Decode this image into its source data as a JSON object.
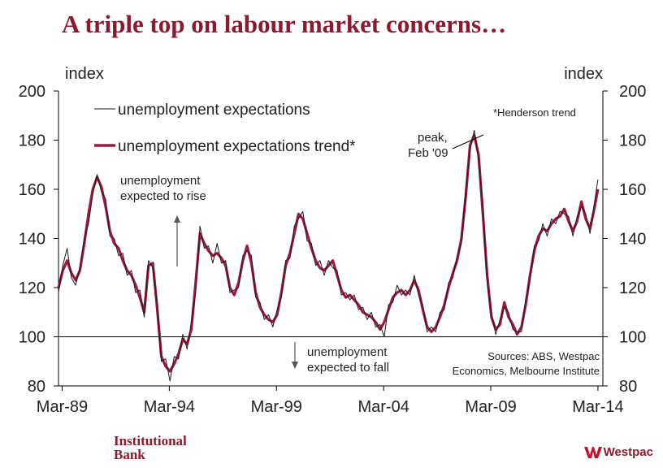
{
  "title": "A triple top on labour market concerns…",
  "footer": {
    "left_line1": "Institutional",
    "left_line2": "Bank",
    "brand": "Westpac"
  },
  "colors": {
    "title": "#8b1a2f",
    "trend": "#9e1a3d",
    "raw": "#1a1a1a",
    "axis": "#000000"
  },
  "chart_data": {
    "type": "line",
    "ylim": [
      80,
      200
    ],
    "yticks": [
      80,
      100,
      120,
      140,
      160,
      180,
      200
    ],
    "ylabel_left": "index",
    "ylabel_right": "index",
    "reference_line": 100,
    "xlim": [
      1989.0,
      2014.4
    ],
    "xticks": [
      {
        "value": 1989.17,
        "label": "Mar-89"
      },
      {
        "value": 1994.17,
        "label": "Mar-94"
      },
      {
        "value": 1999.17,
        "label": "Mar-99"
      },
      {
        "value": 2004.17,
        "label": "Mar-04"
      },
      {
        "value": 2009.17,
        "label": "Mar-09"
      },
      {
        "value": 2014.17,
        "label": "Mar-14"
      }
    ],
    "legend": {
      "raw": "unemployment expectations",
      "trend": "unemployment expectations trend*"
    },
    "annotations": {
      "henderson": "*Henderson trend",
      "peak_line1": "peak,",
      "peak_line2": "Feb '09",
      "rise_line1": "unemployment",
      "rise_line2": "expected to rise",
      "fall_line1": "unemployment",
      "fall_line2": "expected to fall",
      "sources_line1": "Sources: ABS, Westpac",
      "sources_line2": "Economics, Melbourne Institute"
    },
    "series": [
      {
        "name": "unemployment expectations trend*",
        "x": [
          1989.0,
          1989.2,
          1989.4,
          1989.6,
          1989.8,
          1990.0,
          1990.2,
          1990.4,
          1990.6,
          1990.8,
          1991.0,
          1991.2,
          1991.4,
          1991.6,
          1991.8,
          1992.0,
          1992.2,
          1992.4,
          1992.6,
          1992.8,
          1993.0,
          1993.2,
          1993.4,
          1993.6,
          1993.8,
          1994.0,
          1994.2,
          1994.4,
          1994.6,
          1994.8,
          1995.0,
          1995.2,
          1995.4,
          1995.6,
          1995.8,
          1996.0,
          1996.2,
          1996.4,
          1996.6,
          1996.8,
          1997.0,
          1997.2,
          1997.4,
          1997.6,
          1997.8,
          1998.0,
          1998.2,
          1998.4,
          1998.6,
          1998.8,
          1999.0,
          1999.2,
          1999.4,
          1999.6,
          1999.8,
          2000.0,
          2000.2,
          2000.4,
          2000.6,
          2000.8,
          2001.0,
          2001.2,
          2001.4,
          2001.6,
          2001.8,
          2002.0,
          2002.2,
          2002.4,
          2002.6,
          2002.8,
          2003.0,
          2003.2,
          2003.4,
          2003.6,
          2003.8,
          2004.0,
          2004.2,
          2004.4,
          2004.6,
          2004.8,
          2005.0,
          2005.2,
          2005.4,
          2005.6,
          2005.8,
          2006.0,
          2006.2,
          2006.4,
          2006.6,
          2006.8,
          2007.0,
          2007.2,
          2007.4,
          2007.6,
          2007.8,
          2008.0,
          2008.2,
          2008.4,
          2008.6,
          2008.8,
          2009.0,
          2009.2,
          2009.4,
          2009.6,
          2009.8,
          2010.0,
          2010.2,
          2010.4,
          2010.6,
          2010.8,
          2011.0,
          2011.2,
          2011.4,
          2011.6,
          2011.8,
          2012.0,
          2012.2,
          2012.4,
          2012.6,
          2012.8,
          2013.0,
          2013.2,
          2013.4,
          2013.6,
          2013.8,
          2014.0,
          2014.17
        ],
        "values": [
          120,
          127,
          131,
          126,
          123,
          127,
          138,
          150,
          160,
          165,
          161,
          153,
          143,
          138,
          136,
          131,
          127,
          125,
          121,
          116,
          110,
          129,
          130,
          112,
          92,
          88,
          86,
          89,
          93,
          99,
          97,
          103,
          122,
          142,
          138,
          135,
          133,
          134,
          132,
          129,
          120,
          117,
          122,
          131,
          137,
          130,
          118,
          112,
          109,
          107,
          106,
          109,
          118,
          129,
          134,
          142,
          150,
          148,
          142,
          136,
          131,
          128,
          127,
          129,
          131,
          125,
          119,
          116,
          117,
          115,
          113,
          110,
          109,
          108,
          106,
          103,
          106,
          111,
          116,
          118,
          119,
          117,
          119,
          123,
          119,
          111,
          104,
          102,
          104,
          108,
          113,
          120,
          126,
          131,
          140,
          157,
          178,
          182,
          174,
          150,
          125,
          108,
          103,
          105,
          114,
          108,
          105,
          101,
          104,
          113,
          125,
          135,
          141,
          144,
          143,
          146,
          148,
          149,
          152,
          147,
          143,
          147,
          155,
          148,
          144,
          152,
          160
        ]
      },
      {
        "name": "unemployment expectations",
        "x": [
          1989.0,
          1989.2,
          1989.4,
          1989.6,
          1989.8,
          1990.0,
          1990.2,
          1990.4,
          1990.6,
          1990.8,
          1991.0,
          1991.2,
          1991.4,
          1991.6,
          1991.8,
          1992.0,
          1992.2,
          1992.4,
          1992.6,
          1992.8,
          1993.0,
          1993.2,
          1993.4,
          1993.6,
          1993.8,
          1994.0,
          1994.2,
          1994.4,
          1994.6,
          1994.8,
          1995.0,
          1995.2,
          1995.4,
          1995.6,
          1995.8,
          1996.0,
          1996.2,
          1996.4,
          1996.6,
          1996.8,
          1997.0,
          1997.2,
          1997.4,
          1997.6,
          1997.8,
          1998.0,
          1998.2,
          1998.4,
          1998.6,
          1998.8,
          1999.0,
          1999.2,
          1999.4,
          1999.6,
          1999.8,
          2000.0,
          2000.2,
          2000.4,
          2000.6,
          2000.8,
          2001.0,
          2001.2,
          2001.4,
          2001.6,
          2001.8,
          2002.0,
          2002.2,
          2002.4,
          2002.6,
          2002.8,
          2003.0,
          2003.2,
          2003.4,
          2003.6,
          2003.8,
          2004.0,
          2004.2,
          2004.4,
          2004.6,
          2004.8,
          2005.0,
          2005.2,
          2005.4,
          2005.6,
          2005.8,
          2006.0,
          2006.2,
          2006.4,
          2006.6,
          2006.8,
          2007.0,
          2007.2,
          2007.4,
          2007.6,
          2007.8,
          2008.0,
          2008.2,
          2008.4,
          2008.6,
          2008.8,
          2009.0,
          2009.2,
          2009.4,
          2009.6,
          2009.8,
          2010.0,
          2010.2,
          2010.4,
          2010.6,
          2010.8,
          2011.0,
          2011.2,
          2011.4,
          2011.6,
          2011.8,
          2012.0,
          2012.2,
          2012.4,
          2012.6,
          2012.8,
          2013.0,
          2013.2,
          2013.4,
          2013.6,
          2013.8,
          2014.0,
          2014.17
        ],
        "values": [
          118,
          129,
          136,
          124,
          121,
          128,
          140,
          146,
          158,
          166,
          159,
          156,
          141,
          140,
          133,
          134,
          125,
          127,
          118,
          119,
          108,
          131,
          128,
          114,
          90,
          91,
          82,
          92,
          91,
          101,
          95,
          106,
          118,
          145,
          136,
          137,
          130,
          138,
          130,
          131,
          118,
          119,
          120,
          133,
          135,
          133,
          116,
          114,
          107,
          109,
          104,
          111,
          116,
          131,
          132,
          145,
          148,
          151,
          139,
          138,
          129,
          131,
          125,
          131,
          128,
          127,
          117,
          118,
          115,
          117,
          111,
          112,
          107,
          110,
          104,
          105,
          100,
          113,
          114,
          121,
          117,
          119,
          117,
          125,
          117,
          113,
          102,
          104,
          102,
          110,
          111,
          122,
          124,
          133,
          138,
          159,
          176,
          184,
          172,
          153,
          122,
          110,
          101,
          107,
          112,
          110,
          103,
          102,
          102,
          115,
          123,
          137,
          139,
          146,
          141,
          148,
          146,
          151,
          150,
          149,
          141,
          149,
          153,
          150,
          142,
          154,
          164
        ]
      }
    ]
  }
}
